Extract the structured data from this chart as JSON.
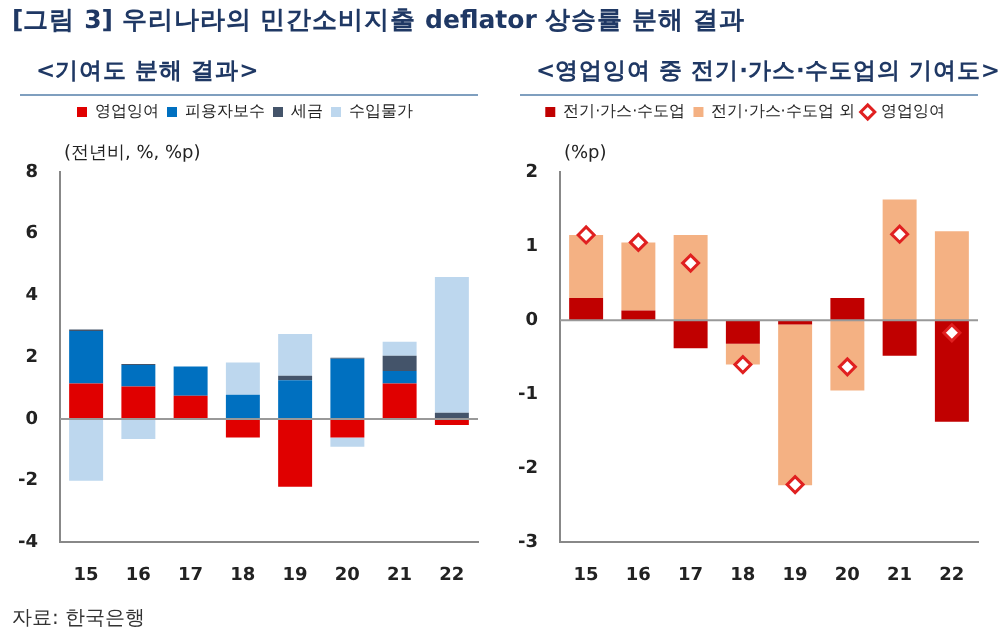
{
  "chart_data": [
    {
      "type": "bar",
      "title": "[그림 3] 우리나라의 민간소비지출 deflator 상승률 분해 결과",
      "subtitle": "<기여도 분해 결과>",
      "ylabel": "(전년비, %, %p)",
      "categories": [
        "15",
        "16",
        "17",
        "18",
        "19",
        "20",
        "21",
        "22"
      ],
      "stacked": true,
      "legend": "top",
      "grid": false,
      "ref_lines": [
        {
          "axis": "y",
          "value": 0,
          "color": "#999999"
        }
      ],
      "ylim": [
        -4,
        8
      ],
      "yticks": [
        -4,
        -2,
        0,
        2,
        4,
        6,
        8
      ],
      "series": [
        {
          "name": "영업잉여",
          "color": "#e00000",
          "values": [
            1.15,
            1.05,
            0.75,
            -0.6,
            -2.2,
            -0.6,
            1.15,
            -0.2
          ]
        },
        {
          "name": "피용자보수",
          "color": "#0070c0",
          "values": [
            1.7,
            0.7,
            0.95,
            0.78,
            1.25,
            1.95,
            0.4,
            0
          ]
        },
        {
          "name": "세금",
          "color": "#44546a",
          "values": [
            0.05,
            0.03,
            0,
            0,
            0.15,
            0.03,
            0.5,
            0.2
          ]
        },
        {
          "name": "수입물가",
          "color": "#bdd7ee",
          "values": [
            -2,
            -0.65,
            0,
            1.05,
            1.35,
            -0.3,
            0.45,
            4.4
          ]
        }
      ],
      "annotations": [
        "자료: 한국은행"
      ]
    },
    {
      "type": "bar",
      "subtitle": "<영업잉여 중 전기·가스·수도업의 기여도>",
      "ylabel": "(%p)",
      "categories": [
        "15",
        "16",
        "17",
        "18",
        "19",
        "20",
        "21",
        "22"
      ],
      "stacked": true,
      "legend": "top",
      "grid": false,
      "ref_lines": [
        {
          "axis": "y",
          "value": 0,
          "color": "#999999"
        }
      ],
      "ylim": [
        -3,
        2
      ],
      "yticks": [
        -3,
        -2,
        -1,
        0,
        1,
        2
      ],
      "series": [
        {
          "name": "전기·가스·수도업",
          "color": "#c00000",
          "values": [
            0.3,
            0.13,
            -0.38,
            -0.32,
            -0.06,
            0.3,
            -0.48,
            -1.37
          ]
        },
        {
          "name": "전기·가스·수도업 외",
          "color": "#f4b183",
          "values": [
            0.85,
            0.92,
            1.15,
            -0.28,
            -2.17,
            -0.95,
            1.63,
            1.2
          ]
        },
        {
          "name": "영업잉여",
          "type": "scatter",
          "marker": "diamond",
          "color": "#e02020",
          "x": [
            "15",
            "16",
            "17",
            "18",
            "19",
            "20",
            "21",
            "22"
          ],
          "values": [
            1.15,
            1.05,
            0.77,
            -0.6,
            -2.22,
            -0.63,
            1.16,
            -0.17
          ]
        }
      ]
    }
  ]
}
